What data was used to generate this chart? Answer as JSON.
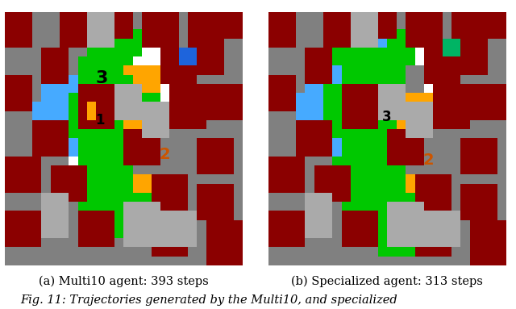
{
  "caption_a": "(a) Multi10 agent: 393 steps",
  "caption_b": "(b) Specialized agent: 313 steps",
  "fig_caption": "Fig. 11: Trajectories generated by the Multi10, and specialized",
  "background_color": "#ffffff",
  "caption_fontsize": 10.5,
  "fig_caption_fontsize": 10.5,
  "colors": {
    "gray": [
      128,
      128,
      128
    ],
    "dark_red": [
      139,
      0,
      0
    ],
    "white": [
      255,
      255,
      255
    ],
    "green": [
      0,
      200,
      0
    ],
    "light_green": [
      80,
      240,
      80
    ],
    "blue": [
      30,
      100,
      220
    ],
    "light_blue": [
      70,
      170,
      255
    ],
    "cyan_blue": [
      0,
      180,
      220
    ],
    "orange": [
      255,
      165,
      0
    ],
    "dark_gray": [
      100,
      100,
      100
    ],
    "med_gray": [
      170,
      170,
      170
    ],
    "black": [
      0,
      0,
      0
    ]
  }
}
